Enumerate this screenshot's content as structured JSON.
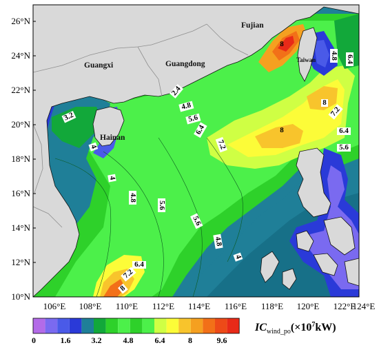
{
  "colors": {
    "ocean_scale": [
      "#b36be8",
      "#7a6af0",
      "#4a5ae8",
      "#2a3ad8",
      "#1f7f98",
      "#12a83a",
      "#2ed12a",
      "#4cf04a",
      "#cfff44",
      "#fcfc38",
      "#f8c42c",
      "#f5a020",
      "#f27018",
      "#ed4a18",
      "#e82a18"
    ],
    "land": "#d9d9d9",
    "border": "#8f8f8f",
    "coast": "#111111"
  },
  "map": {
    "lat_labels": [
      "26°N",
      "24°N",
      "22°N",
      "20°N",
      "18°N",
      "16°N",
      "14°N",
      "12°N",
      "10°N"
    ],
    "lon_labels": [
      "106°E",
      "108°E",
      "110°E",
      "112°E",
      "114°E",
      "116°E",
      "118°E",
      "120°E",
      "122°E",
      "124°E"
    ],
    "places": {
      "fujian": "Fujian",
      "guangxi": "Guangxi",
      "guangdong": "Guangdong",
      "hainan": "Hainan",
      "taiwan": "Taiwan"
    },
    "contour_labels": [
      "3.2",
      "4",
      "4",
      "4.8",
      "5.6",
      "5.6",
      "4.8",
      "4",
      "2.4",
      "4.8",
      "5.6",
      "6.4",
      "7.2",
      "8",
      "8",
      "8",
      "7.2",
      "6.4",
      "5.6",
      "4.8",
      "6.4",
      "6.4",
      "7.2",
      "8"
    ]
  },
  "colorbar": {
    "ticks": [
      "0",
      "1.6",
      "3.2",
      "4.8",
      "6.4",
      "8",
      "9.6"
    ],
    "title_main": "IC",
    "title_sub": "wind_po",
    "title_unit": "(×10",
    "title_exp": "7",
    "title_tail": "kW)"
  }
}
